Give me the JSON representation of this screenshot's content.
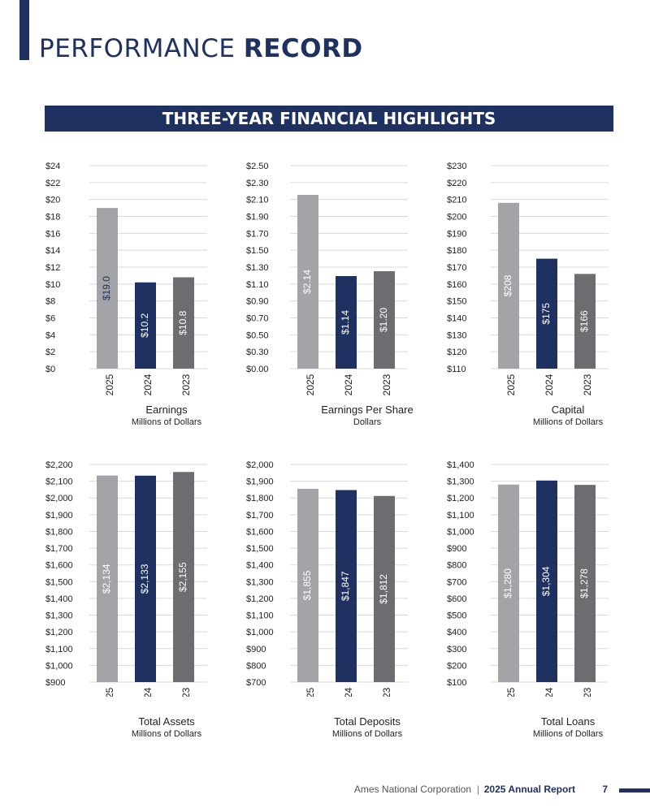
{
  "header": {
    "title_light": "PERFORMANCE",
    "title_bold": "RECORD",
    "banner": "THREE-YEAR FINANCIAL HIGHLIGHTS",
    "accent_color": "#1e3160"
  },
  "chart_data": [
    {
      "type": "bar",
      "title": "Earnings",
      "subtitle": "Millions of Dollars",
      "categories": [
        "2025",
        "2024",
        "2023"
      ],
      "values": [
        19.0,
        10.2,
        10.8
      ],
      "value_labels": [
        "$19.0",
        "$10.2",
        "$10.8"
      ],
      "ylim": [
        0,
        24
      ],
      "yticks": [
        "$0",
        "$2",
        "$4",
        "$6",
        "$8",
        "$10",
        "$12",
        "$14",
        "$16",
        "$18",
        "$20",
        "$22",
        "$24"
      ],
      "bar_colors": [
        "#a2a4a7",
        "#1e3160",
        "#6c6d71"
      ],
      "grid": true
    },
    {
      "type": "bar",
      "title": "Earnings Per Share",
      "subtitle": "Dollars",
      "categories": [
        "2025",
        "2024",
        "2023"
      ],
      "values": [
        2.14,
        1.14,
        1.2
      ],
      "value_labels": [
        "$2.14",
        "$1.14",
        "$1.20"
      ],
      "ylim": [
        0,
        2.5
      ],
      "yticks": [
        "$0.00",
        "$0.30",
        "$0.50",
        "$0.70",
        "$0.90",
        "$1.10",
        "$1.30",
        "$1.50",
        "$1.70",
        "$1.90",
        "$2.10",
        "$2.30",
        "$2.50"
      ],
      "bar_colors": [
        "#a2a4a7",
        "#1e3160",
        "#6c6d71"
      ],
      "grid": true
    },
    {
      "type": "bar",
      "title": "Capital",
      "subtitle": "Millions of Dollars",
      "categories": [
        "2025",
        "2024",
        "2023"
      ],
      "values": [
        208,
        175,
        166
      ],
      "value_labels": [
        "$208",
        "$175",
        "$166"
      ],
      "ylim": [
        110,
        230
      ],
      "yticks": [
        "$110",
        "$120",
        "$130",
        "$140",
        "$150",
        "$160",
        "$170",
        "$180",
        "$190",
        "$200",
        "$210",
        "$220",
        "$230"
      ],
      "bar_colors": [
        "#a2a4a7",
        "#1e3160",
        "#6c6d71"
      ],
      "grid": true
    },
    {
      "type": "bar",
      "title": "Total Assets",
      "subtitle": "Millions of Dollars",
      "categories": [
        "2025",
        "2024",
        "2023"
      ],
      "values": [
        2134,
        2133,
        2155
      ],
      "value_labels": [
        "$2,134",
        "$2,133",
        "$2,155"
      ],
      "ylim": [
        900,
        2200
      ],
      "yticks": [
        "$900",
        "$1,000",
        "$1,100",
        "$1,200",
        "$1,300",
        "$1,400",
        "$1,500",
        "$1,600",
        "$1,700",
        "$1,800",
        "$1,900",
        "$2,000",
        "$2,100",
        "$2,200"
      ],
      "bar_colors": [
        "#a2a4a7",
        "#1e3160",
        "#6c6d71"
      ],
      "grid": true
    },
    {
      "type": "bar",
      "title": "Total Deposits",
      "subtitle": "Millions of Dollars",
      "categories": [
        "2025",
        "2024",
        "2023"
      ],
      "values": [
        1855,
        1847,
        1812
      ],
      "value_labels": [
        "$1,855",
        "$1,847",
        "$1,812"
      ],
      "ylim": [
        700,
        2000
      ],
      "yticks": [
        "$700",
        "$800",
        "$900",
        "$1,000",
        "$1,100",
        "$1,200",
        "$1,300",
        "$1,400",
        "$1,500",
        "$1,600",
        "$1,700",
        "$1,800",
        "$1,900",
        "$2,000"
      ],
      "bar_colors": [
        "#a2a4a7",
        "#1e3160",
        "#6c6d71"
      ],
      "grid": true
    },
    {
      "type": "bar",
      "title": "Total Loans",
      "subtitle": "Millions of Dollars",
      "categories": [
        "2025",
        "2024",
        "2023"
      ],
      "values": [
        1280,
        1304,
        1278
      ],
      "value_labels": [
        "$1,280",
        "$1,304",
        "$1,278"
      ],
      "ylim": [
        100,
        1400
      ],
      "yticks": [
        "$100",
        "$200",
        "$300",
        "$400",
        "$500",
        "$600",
        "$700",
        "$800",
        "$900",
        "$1,000",
        "$1,100",
        "$1,200",
        "$1,300",
        "$1,400"
      ],
      "bar_colors": [
        "#a2a4a7",
        "#1e3160",
        "#6c6d71"
      ],
      "grid": true
    }
  ],
  "footer": {
    "company": "Ames National Corporation",
    "separator": "|",
    "report": "2025 Annual Report",
    "page_number": "7"
  }
}
